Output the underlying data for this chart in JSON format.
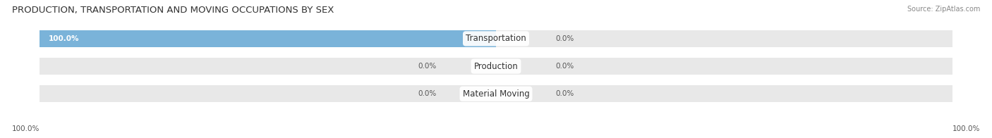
{
  "title": "PRODUCTION, TRANSPORTATION AND MOVING OCCUPATIONS BY SEX",
  "source": "Source: ZipAtlas.com",
  "categories": [
    "Transportation",
    "Production",
    "Material Moving"
  ],
  "male_values": [
    100.0,
    0.0,
    0.0
  ],
  "female_values": [
    0.0,
    0.0,
    0.0
  ],
  "male_color": "#7ab3d9",
  "female_color": "#f2a0b8",
  "bar_bg_color": "#e8e8e8",
  "bar_height": 0.62,
  "title_fontsize": 9.5,
  "label_fontsize": 8.5,
  "value_fontsize": 7.5,
  "source_fontsize": 7,
  "legend_fontsize": 8,
  "figsize": [
    14.06,
    1.96
  ],
  "dpi": 100
}
